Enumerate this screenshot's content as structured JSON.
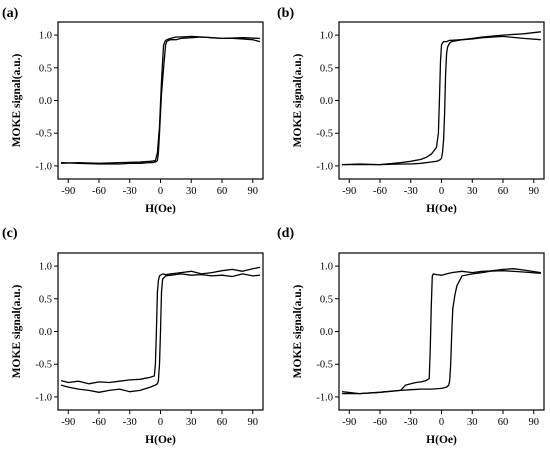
{
  "chart_data": [
    {
      "type": "line",
      "panel_label": "(a)",
      "xlabel": "H(Oe)",
      "ylabel": "MOKE signal(a.u.)",
      "xlim": [
        -100,
        100
      ],
      "ylim": [
        -1.2,
        1.2
      ],
      "xticks": [
        -90,
        -60,
        -30,
        0,
        30,
        60,
        90
      ],
      "yticks": [
        -1.0,
        -0.5,
        0.0,
        0.5,
        1.0
      ],
      "series": [
        {
          "x": [
            -97,
            -80,
            -60,
            -40,
            -20,
            -10,
            -5,
            -3,
            -1,
            0,
            1,
            2,
            3,
            5,
            8,
            10,
            15,
            20,
            30,
            40,
            50,
            60,
            70,
            80,
            90,
            97
          ],
          "y": [
            -0.96,
            -0.95,
            -0.96,
            -0.95,
            -0.94,
            -0.93,
            -0.92,
            -0.8,
            -0.4,
            -0.05,
            0.3,
            0.6,
            0.85,
            0.92,
            0.94,
            0.95,
            0.97,
            0.97,
            0.98,
            0.97,
            0.96,
            0.95,
            0.95,
            0.94,
            0.93,
            0.9
          ]
        },
        {
          "x": [
            97,
            80,
            60,
            40,
            30,
            20,
            15,
            10,
            8,
            6,
            5,
            3,
            1,
            0,
            -1,
            -2,
            -3,
            -5,
            -8,
            -10,
            -20,
            -30,
            -40,
            -60,
            -80,
            -97
          ],
          "y": [
            0.95,
            0.96,
            0.95,
            0.97,
            0.96,
            0.95,
            0.93,
            0.93,
            0.92,
            0.9,
            0.85,
            0.5,
            0.1,
            -0.2,
            -0.5,
            -0.8,
            -0.92,
            -0.94,
            -0.95,
            -0.95,
            -0.96,
            -0.96,
            -0.97,
            -0.97,
            -0.96,
            -0.95
          ]
        }
      ]
    },
    {
      "type": "line",
      "panel_label": "(b)",
      "xlabel": "H(Oe)",
      "ylabel": "MOKE signal(a.u.)",
      "xlim": [
        -100,
        100
      ],
      "ylim": [
        -1.2,
        1.2
      ],
      "xticks": [
        -90,
        -60,
        -30,
        0,
        30,
        60,
        90
      ],
      "yticks": [
        -1.0,
        -0.5,
        0.0,
        0.5,
        1.0
      ],
      "series": [
        {
          "x": [
            -97,
            -80,
            -60,
            -40,
            -30,
            -20,
            -15,
            -10,
            -5,
            -3,
            -2,
            -1,
            0,
            1,
            2,
            3,
            5,
            8,
            10,
            20,
            30,
            40,
            60,
            80,
            97
          ],
          "y": [
            -0.98,
            -0.97,
            -0.98,
            -0.95,
            -0.93,
            -0.9,
            -0.87,
            -0.82,
            -0.72,
            -0.5,
            0.0,
            0.6,
            0.85,
            0.88,
            0.9,
            0.9,
            0.9,
            0.92,
            0.92,
            0.93,
            0.95,
            0.97,
            1.0,
            1.02,
            1.05
          ]
        },
        {
          "x": [
            97,
            80,
            60,
            40,
            30,
            20,
            10,
            8,
            6,
            5,
            4,
            3,
            2,
            1,
            0,
            -1,
            -3,
            -5,
            -10,
            -20,
            -30,
            -40,
            -60,
            -80,
            -97
          ],
          "y": [
            0.93,
            0.95,
            0.98,
            0.96,
            0.94,
            0.93,
            0.9,
            0.88,
            0.82,
            0.72,
            0.4,
            -0.2,
            -0.6,
            -0.8,
            -0.88,
            -0.9,
            -0.92,
            -0.93,
            -0.94,
            -0.96,
            -0.97,
            -0.97,
            -0.98,
            -0.98,
            -0.98
          ]
        }
      ]
    },
    {
      "type": "line",
      "panel_label": "(c)",
      "xlabel": "H(Oe)",
      "ylabel": "MOKE signal(a.u.)",
      "xlim": [
        -100,
        100
      ],
      "ylim": [
        -1.2,
        1.2
      ],
      "xticks": [
        -90,
        -60,
        -30,
        0,
        30,
        60,
        90
      ],
      "yticks": [
        -1.0,
        -0.5,
        0.0,
        0.5,
        1.0
      ],
      "series": [
        {
          "x": [
            -97,
            -90,
            -80,
            -70,
            -60,
            -50,
            -40,
            -30,
            -20,
            -10,
            -6,
            -5,
            -4,
            -3,
            -2,
            -1,
            0,
            2,
            5,
            10,
            20,
            30,
            40,
            50,
            60,
            70,
            80,
            90,
            97
          ],
          "y": [
            -0.75,
            -0.78,
            -0.76,
            -0.8,
            -0.77,
            -0.78,
            -0.76,
            -0.74,
            -0.73,
            -0.7,
            -0.68,
            -0.5,
            0.0,
            0.6,
            0.78,
            0.85,
            0.86,
            0.88,
            0.87,
            0.88,
            0.9,
            0.92,
            0.88,
            0.9,
            0.93,
            0.95,
            0.92,
            0.96,
            0.98
          ]
        },
        {
          "x": [
            97,
            90,
            80,
            70,
            60,
            50,
            40,
            30,
            20,
            10,
            5,
            2,
            1,
            0,
            -1,
            -2,
            -3,
            -5,
            -10,
            -20,
            -30,
            -40,
            -50,
            -60,
            -70,
            -80,
            -90,
            -97
          ],
          "y": [
            0.86,
            0.85,
            0.88,
            0.84,
            0.86,
            0.85,
            0.87,
            0.86,
            0.88,
            0.86,
            0.85,
            0.8,
            0.6,
            0.0,
            -0.5,
            -0.75,
            -0.8,
            -0.82,
            -0.85,
            -0.9,
            -0.92,
            -0.88,
            -0.9,
            -0.93,
            -0.9,
            -0.88,
            -0.85,
            -0.82
          ]
        }
      ]
    },
    {
      "type": "line",
      "panel_label": "(d)",
      "xlabel": "H(Oe)",
      "ylabel": "MOKE signal(a.u.)",
      "xlim": [
        -100,
        100
      ],
      "ylim": [
        -1.2,
        1.2
      ],
      "xticks": [
        -90,
        -60,
        -30,
        0,
        30,
        60,
        90
      ],
      "yticks": [
        -1.0,
        -0.5,
        0.0,
        0.5,
        1.0
      ],
      "series": [
        {
          "x": [
            -97,
            -80,
            -60,
            -40,
            -35,
            -30,
            -25,
            -20,
            -15,
            -12,
            -11,
            -10,
            -9,
            -8,
            -5,
            0,
            5,
            10,
            20,
            30,
            40,
            60,
            80,
            97
          ],
          "y": [
            -0.92,
            -0.95,
            -0.93,
            -0.9,
            -0.82,
            -0.8,
            -0.78,
            -0.77,
            -0.75,
            -0.72,
            -0.3,
            0.4,
            0.85,
            0.88,
            0.87,
            0.86,
            0.88,
            0.9,
            0.92,
            0.9,
            0.92,
            0.93,
            0.91,
            0.89
          ]
        },
        {
          "x": [
            97,
            80,
            70,
            60,
            50,
            40,
            30,
            20,
            15,
            13,
            12,
            11,
            10,
            9,
            8,
            7,
            5,
            0,
            -10,
            -20,
            -30,
            -40,
            -60,
            -80,
            -97
          ],
          "y": [
            0.9,
            0.94,
            0.96,
            0.95,
            0.93,
            0.9,
            0.88,
            0.85,
            0.7,
            0.55,
            0.45,
            0.35,
            0.0,
            -0.5,
            -0.75,
            -0.82,
            -0.85,
            -0.87,
            -0.88,
            -0.88,
            -0.89,
            -0.9,
            -0.93,
            -0.95,
            -0.95
          ]
        }
      ]
    }
  ]
}
